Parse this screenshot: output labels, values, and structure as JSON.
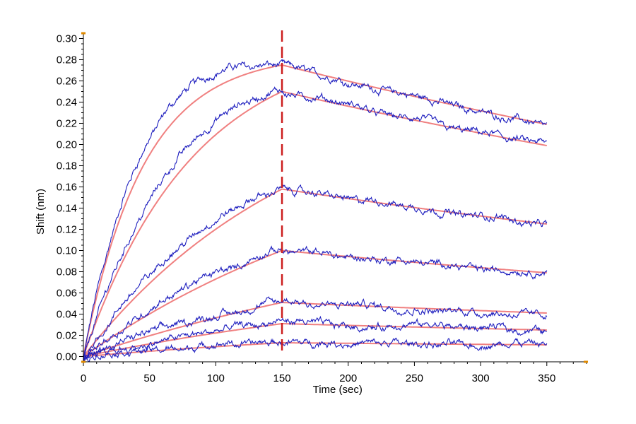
{
  "chart_data": {
    "type": "line",
    "title": "",
    "xlabel": "Time (sec)",
    "ylabel": "Shift (nm)",
    "xlim": [
      0,
      380
    ],
    "ylim": [
      -0.005,
      0.305
    ],
    "x_ticks": [
      0,
      50,
      100,
      150,
      200,
      250,
      300,
      350
    ],
    "y_ticks": [
      0.0,
      0.02,
      0.04,
      0.06,
      0.08,
      0.1,
      0.12,
      0.14,
      0.16,
      0.18,
      0.2,
      0.22,
      0.24,
      0.26,
      0.28,
      0.3
    ],
    "y_tick_labels": [
      "0.00",
      "0.02",
      "0.04",
      "0.06",
      "0.08",
      "0.10",
      "0.12",
      "0.14",
      "0.16",
      "0.18",
      "0.20",
      "0.22",
      "0.24",
      "0.26",
      "0.28",
      "0.30"
    ],
    "x_tick_labels": [
      "0",
      "50",
      "100",
      "150",
      "200",
      "250",
      "300",
      "350"
    ],
    "dissociation_start": 150,
    "association_end": 150,
    "x_end": 350,
    "grid": false,
    "legend": "none",
    "colors": {
      "measured": "#1f1fbf",
      "fit": "#f08080",
      "marker": "#cc1f1f",
      "axis_end_marker": "#e08a00"
    },
    "series": [
      {
        "values_at": {
          "t0": 0.0,
          "t150": 0.275,
          "t350": 0.219
        }
      },
      {
        "values_at": {
          "t0": 0.0,
          "t150": 0.25,
          "t350": 0.199
        }
      },
      {
        "values_at": {
          "t0": 0.0,
          "t150": 0.158,
          "t350": 0.125
        }
      },
      {
        "values_at": {
          "t0": 0.0,
          "t150": 0.1,
          "t350": 0.079
        }
      },
      {
        "values_at": {
          "t0": 0.0,
          "t150": 0.051,
          "t350": 0.041
        }
      },
      {
        "values_at": {
          "t0": 0.0,
          "t150": 0.031,
          "t350": 0.025
        }
      },
      {
        "values_at": {
          "t0": 0.0,
          "t150": 0.013,
          "t350": 0.011
        }
      }
    ]
  }
}
